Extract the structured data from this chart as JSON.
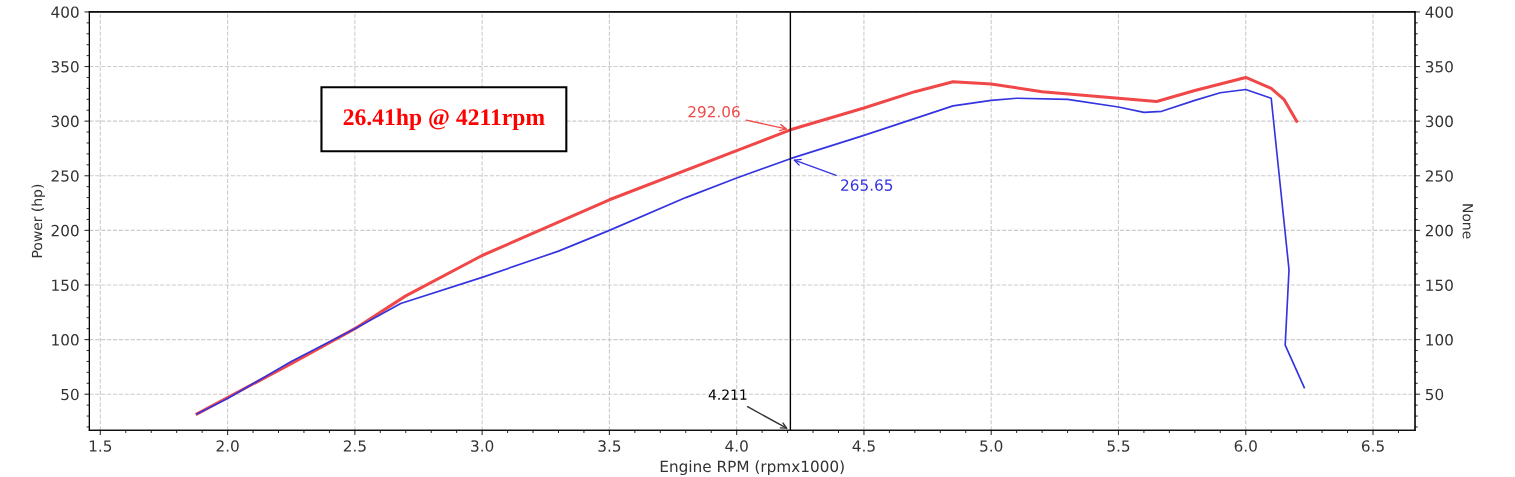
{
  "chart_data": {
    "type": "line",
    "xlabel": "Engine RPM (rpmx1000)",
    "ylabel": "Power (hp)",
    "y2label": "None",
    "xlim": [
      1.457,
      6.665
    ],
    "ylim": [
      17,
      400
    ],
    "y2lim": [
      17,
      400
    ],
    "xticks": [
      {
        "value": 1.5,
        "label": "1.5"
      },
      {
        "value": 2,
        "label": "2.0"
      },
      {
        "value": 2.5,
        "label": "2.5"
      },
      {
        "value": 3,
        "label": "3.0"
      },
      {
        "value": 3.5,
        "label": "3.5"
      },
      {
        "value": 4,
        "label": "4.0"
      },
      {
        "value": 4.5,
        "label": "4.5"
      },
      {
        "value": 5,
        "label": "5.0"
      },
      {
        "value": 5.5,
        "label": "5.5"
      },
      {
        "value": 6,
        "label": "6.0"
      },
      {
        "value": 6.5,
        "label": "6.5"
      }
    ],
    "yticks": [
      50,
      100,
      150,
      200,
      250,
      300,
      350,
      400
    ],
    "y2ticks": [
      50,
      100,
      150,
      200,
      250,
      300,
      350,
      400
    ],
    "grid": true,
    "legend": false,
    "marker": "none",
    "line_style": "solid",
    "series": [
      {
        "color": "#f04848",
        "x": [
          1.88,
          2.0,
          2.25,
          2.5,
          2.7,
          3.0,
          3.5,
          4.0,
          4.211,
          4.5,
          4.7,
          4.85,
          5.0,
          5.2,
          5.5,
          5.65,
          5.8,
          6.0,
          6.1,
          6.15,
          6.2
        ],
        "values": [
          32,
          47,
          78,
          110,
          140,
          177,
          228,
          273,
          292.06,
          312,
          327,
          336,
          334,
          327,
          321,
          318,
          328,
          340,
          330,
          320,
          300
        ]
      },
      {
        "color": "#3434e0",
        "x": [
          1.88,
          2.0,
          2.25,
          2.5,
          2.68,
          3.0,
          3.3,
          3.5,
          3.8,
          4.0,
          4.211,
          4.5,
          4.85,
          5.0,
          5.1,
          5.3,
          5.5,
          5.6,
          5.67,
          5.8,
          5.9,
          6.0,
          6.1,
          6.17,
          6.155,
          6.23
        ],
        "values": [
          32,
          46,
          80,
          110,
          133,
          157,
          181,
          200,
          230,
          248,
          265.65,
          287,
          314,
          319,
          321,
          320,
          313,
          308,
          309,
          319,
          326,
          329,
          321,
          164,
          95,
          56
        ]
      }
    ],
    "ref_lines": [
      {
        "axis": "x",
        "value": 4.211,
        "label": "4.211",
        "color": "#000000"
      }
    ],
    "annotations": [
      {
        "text": "292.06",
        "x": 4.211,
        "y": 292.06
      },
      {
        "text": "265.65",
        "x": 4.211,
        "y": 265.65
      },
      "26.41hp @ 4211rpm"
    ]
  }
}
